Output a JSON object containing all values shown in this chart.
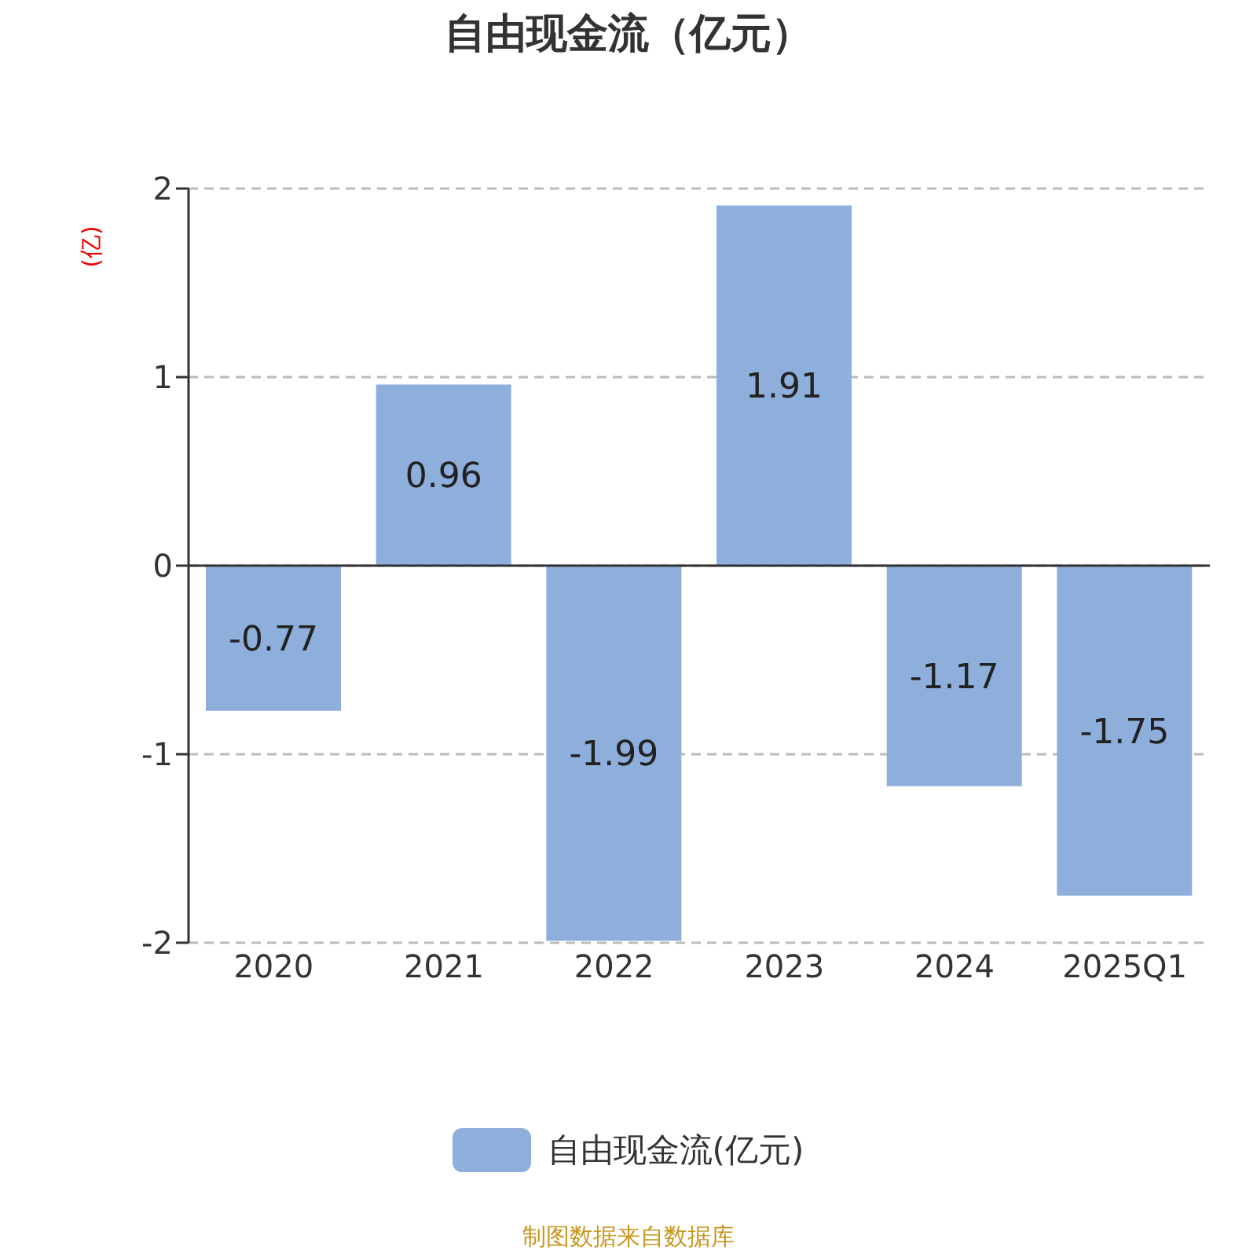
{
  "chart_data": {
    "type": "bar",
    "title": "自由现金流（亿元）",
    "ylabel": "(亿)",
    "categories": [
      "2020",
      "2021",
      "2022",
      "2023",
      "2024",
      "2025Q1"
    ],
    "series": [
      {
        "name": "自由现金流(亿元)",
        "color": "#8eaedb",
        "values": [
          -0.77,
          0.96,
          -1.99,
          1.91,
          -1.17,
          -1.75
        ]
      }
    ],
    "ylim": [
      -2,
      2
    ],
    "yticks": [
      -2,
      -1,
      0,
      1,
      2
    ],
    "grid": "y",
    "legend": "bottom",
    "data_labels": true,
    "annotations": [
      "制图数据来自数据库"
    ]
  }
}
